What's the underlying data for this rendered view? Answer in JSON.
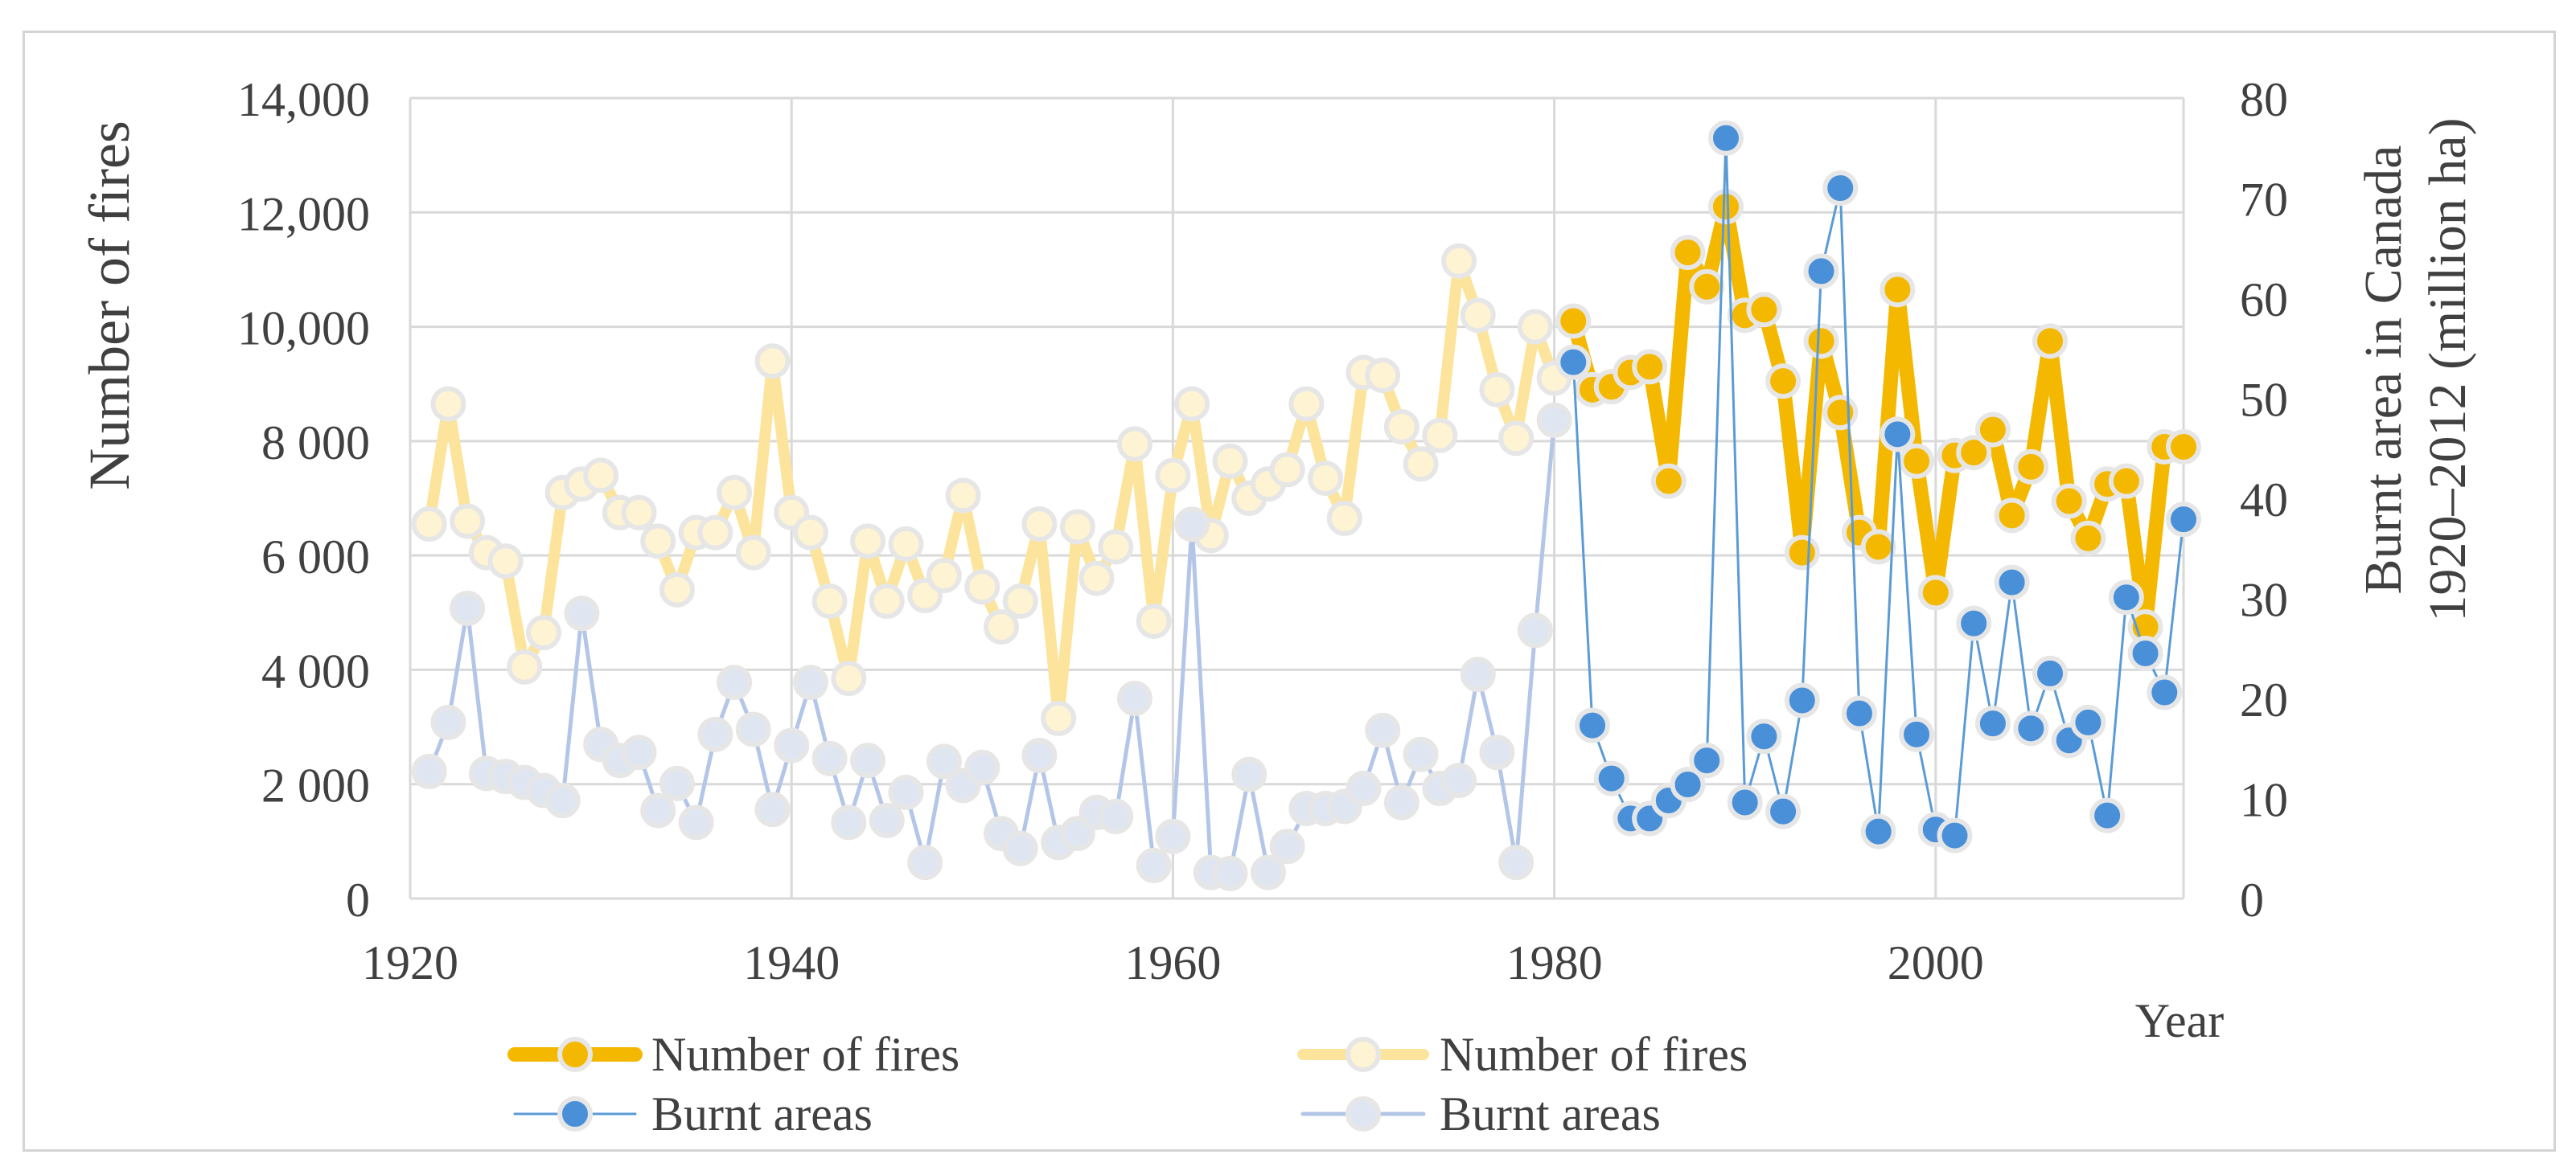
{
  "chart_data": {
    "type": "line",
    "title": "",
    "x_range": [
      1920,
      2013
    ],
    "x_ticks": [
      "1920",
      "1940",
      "1960",
      "1980",
      "2000"
    ],
    "xlabel": "Year",
    "ylabel_left": "Number of fires",
    "ylabel_right_line1": "Burnt area in Canada",
    "ylabel_right_line2": "1920–2012 (million ha)",
    "y_left_range": [
      0,
      14000
    ],
    "y_left_ticks": [
      "0",
      "2 000",
      "4 000",
      "6 000",
      "8 000",
      "10,000",
      "12,000",
      "14,000"
    ],
    "y_right_range": [
      0,
      80
    ],
    "y_right_ticks": [
      "0",
      "10",
      "20",
      "30",
      "40",
      "50",
      "60",
      "70",
      "80"
    ],
    "grid": true,
    "legend_position": "bottom",
    "colors": {
      "fires_dark": "#F5B800",
      "fires_light": "#FCE49C",
      "fires_light_marker": "#FEF3D2",
      "burnt_dark_line": "#5B9BD5",
      "burnt_dark_marker": "#4A90D9",
      "burnt_light_line": "#B4C6E7",
      "burnt_light_marker": "#DFE6F1",
      "marker_edge": "#E6E6E6",
      "grid": "#D9D9D9",
      "text": "#404040"
    },
    "series": [
      {
        "name": "Number of fires",
        "axis": "left",
        "style": "bold",
        "x": [
          1981,
          1982,
          1983,
          1984,
          1985,
          1986,
          1987,
          1988,
          1989,
          1990,
          1991,
          1992,
          1993,
          1994,
          1995,
          1996,
          1997,
          1998,
          1999,
          2000,
          2001,
          2002,
          2003,
          2004,
          2005,
          2006,
          2007,
          2008,
          2009,
          2010,
          2011,
          2012,
          2013
        ],
        "values": [
          10100,
          8900,
          8950,
          9200,
          9300,
          7300,
          11300,
          10700,
          12100,
          10200,
          10300,
          9050,
          6050,
          9750,
          8500,
          6400,
          6150,
          10650,
          7650,
          5350,
          7750,
          7800,
          8200,
          6700,
          7550,
          9750,
          6950,
          6300,
          7250,
          7300,
          4750,
          7900,
          7900
        ]
      },
      {
        "name": "Number of fires",
        "axis": "left",
        "style": "light",
        "x": [
          1921,
          1922,
          1923,
          1924,
          1925,
          1926,
          1927,
          1928,
          1929,
          1930,
          1931,
          1932,
          1933,
          1934,
          1935,
          1936,
          1937,
          1938,
          1939,
          1940,
          1941,
          1942,
          1943,
          1944,
          1945,
          1946,
          1947,
          1948,
          1949,
          1950,
          1951,
          1952,
          1953,
          1954,
          1955,
          1956,
          1957,
          1958,
          1959,
          1960,
          1961,
          1962,
          1963,
          1964,
          1965,
          1966,
          1967,
          1968,
          1969,
          1970,
          1971,
          1972,
          1973,
          1974,
          1975,
          1976,
          1977,
          1978,
          1979,
          1980
        ],
        "values": [
          6550,
          8650,
          6600,
          6050,
          5900,
          4050,
          4650,
          7100,
          7250,
          7400,
          6750,
          6750,
          6250,
          5400,
          6400,
          6400,
          7100,
          6050,
          9400,
          6750,
          6400,
          5200,
          3850,
          6250,
          5200,
          6200,
          5300,
          5650,
          7050,
          5450,
          4750,
          5200,
          6550,
          3150,
          6500,
          5600,
          6150,
          7950,
          4850,
          7400,
          8650,
          6350,
          7650,
          7000,
          7250,
          7500,
          8650,
          7350,
          6650,
          9200,
          9150,
          8250,
          7600,
          8100,
          11150,
          10200,
          8900,
          8050,
          10000,
          9100
        ]
      },
      {
        "name": "Burnt areas",
        "axis": "right",
        "style": "bold",
        "x": [
          1981,
          1982,
          1983,
          1984,
          1985,
          1986,
          1987,
          1988,
          1989,
          1990,
          1991,
          1992,
          1993,
          1994,
          1995,
          1996,
          1997,
          1998,
          1999,
          2000,
          2001,
          2002,
          2003,
          2004,
          2005,
          2006,
          2007,
          2008,
          2009,
          2010,
          2011,
          2012,
          2013
        ],
        "values": [
          53.6,
          17.3,
          12.0,
          8.0,
          8.0,
          9.8,
          11.4,
          13.8,
          76.0,
          9.6,
          16.2,
          8.7,
          19.8,
          62.7,
          71.0,
          18.5,
          6.7,
          46.4,
          16.4,
          6.9,
          6.3,
          27.5,
          17.5,
          31.6,
          17.0,
          22.5,
          15.8,
          17.6,
          8.3,
          30.1,
          24.5,
          20.6,
          37.9
        ]
      },
      {
        "name": "Burnt areas",
        "axis": "right",
        "style": "light",
        "x": [
          1921,
          1922,
          1923,
          1924,
          1925,
          1926,
          1927,
          1928,
          1929,
          1930,
          1931,
          1932,
          1933,
          1934,
          1935,
          1936,
          1937,
          1938,
          1939,
          1940,
          1941,
          1942,
          1943,
          1944,
          1945,
          1946,
          1947,
          1948,
          1949,
          1950,
          1951,
          1952,
          1953,
          1954,
          1955,
          1956,
          1957,
          1958,
          1959,
          1960,
          1961,
          1962,
          1963,
          1964,
          1965,
          1966,
          1967,
          1968,
          1969,
          1970,
          1971,
          1972,
          1973,
          1974,
          1975,
          1976,
          1977,
          1978,
          1979,
          1980
        ],
        "values": [
          12.7,
          17.6,
          29.0,
          12.5,
          12.2,
          11.6,
          10.8,
          9.8,
          28.5,
          15.4,
          13.8,
          14.6,
          8.8,
          11.5,
          7.6,
          16.4,
          21.6,
          16.9,
          8.9,
          15.3,
          21.6,
          14.0,
          7.6,
          13.8,
          7.8,
          10.6,
          3.6,
          13.7,
          11.3,
          13.1,
          6.5,
          5.0,
          14.3,
          5.6,
          6.5,
          8.6,
          8.2,
          20.0,
          3.3,
          6.2,
          37.4,
          2.6,
          2.5,
          12.4,
          2.6,
          5.2,
          9.0,
          9.0,
          9.2,
          11.0,
          16.8,
          9.6,
          14.4,
          11.0,
          11.8,
          22.4,
          14.6,
          3.6,
          26.8,
          47.8
        ]
      }
    ],
    "legend": [
      {
        "label": "Number of fires",
        "series": 0
      },
      {
        "label": "Number of fires",
        "series": 1
      },
      {
        "label": "Burnt areas",
        "series": 2
      },
      {
        "label": "Burnt areas",
        "series": 3
      }
    ]
  }
}
